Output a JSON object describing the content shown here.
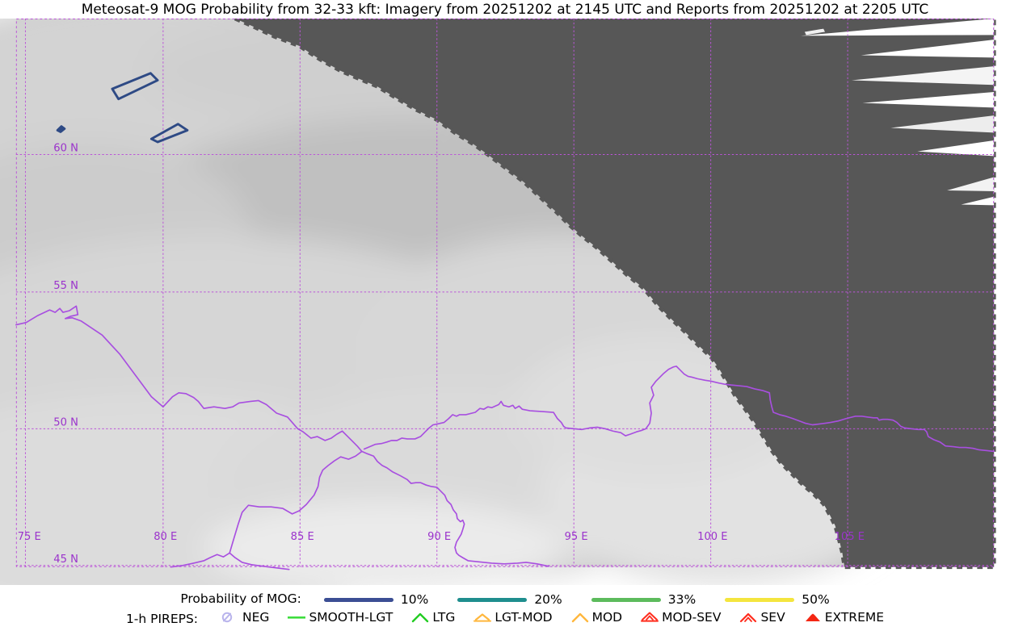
{
  "title": "Meteosat-9 MOG Probability from 32-33 kft: Imagery from 20251202 at 2145 UTC and Reports from 20251202 at 2205 UTC",
  "map": {
    "lat_labels": [
      "60 N",
      "55 N",
      "50 N",
      "45 N"
    ],
    "lon_labels": [
      "75 E",
      "80 E",
      "85 E",
      "90 E",
      "95 E",
      "100 E",
      "105 E"
    ],
    "grid_color": "#bb55d8",
    "label_color": "#9b33cc",
    "country_border_color": "#a84fe0",
    "nodata_color": "#575757",
    "cloud_base_color": "#c7c7c7",
    "contour_10pct_color": "#2e4a85",
    "mog_contours_10pct": [
      {
        "points": [
          [
            123,
            113
          ],
          [
            172,
            93
          ],
          [
            181,
            102
          ],
          [
            131,
            126
          ]
        ],
        "filled": false
      },
      {
        "points": [
          [
            173,
            177
          ],
          [
            207,
            158
          ],
          [
            219,
            166
          ],
          [
            181,
            181
          ]
        ],
        "filled": false
      },
      {
        "points": [
          [
            53,
            166
          ],
          [
            58,
            161
          ],
          [
            62,
            164
          ],
          [
            57,
            168
          ]
        ],
        "filled": true
      }
    ]
  },
  "legend": {
    "mog": {
      "label": "Probability of MOG:",
      "items": [
        {
          "label": "10%",
          "color": "#3b4e94"
        },
        {
          "label": "20%",
          "color": "#1f8e8e"
        },
        {
          "label": "33%",
          "color": "#5cbb5c"
        },
        {
          "label": "50%",
          "color": "#f4e53e"
        }
      ]
    },
    "pireps": {
      "label": "1-h PIREPS:",
      "items": [
        {
          "label": "NEG",
          "symbol": "neg",
          "color": "#b9b4ec"
        },
        {
          "label": "SMOOTH-LGT",
          "symbol": "line",
          "color": "#3ddd3d"
        },
        {
          "label": "LTG",
          "symbol": "caret",
          "color": "#22cc22"
        },
        {
          "label": "LGT-MOD",
          "symbol": "caret-base",
          "color": "#ffb73d"
        },
        {
          "label": "MOD",
          "symbol": "caret",
          "color": "#ffb73d"
        },
        {
          "label": "MOD-SEV",
          "symbol": "double-caret-base",
          "color": "#ff2d1e"
        },
        {
          "label": "SEV",
          "symbol": "double-caret",
          "color": "#ff2d1e"
        },
        {
          "label": "EXTREME",
          "symbol": "triangle",
          "color": "#f42713"
        }
      ]
    }
  }
}
